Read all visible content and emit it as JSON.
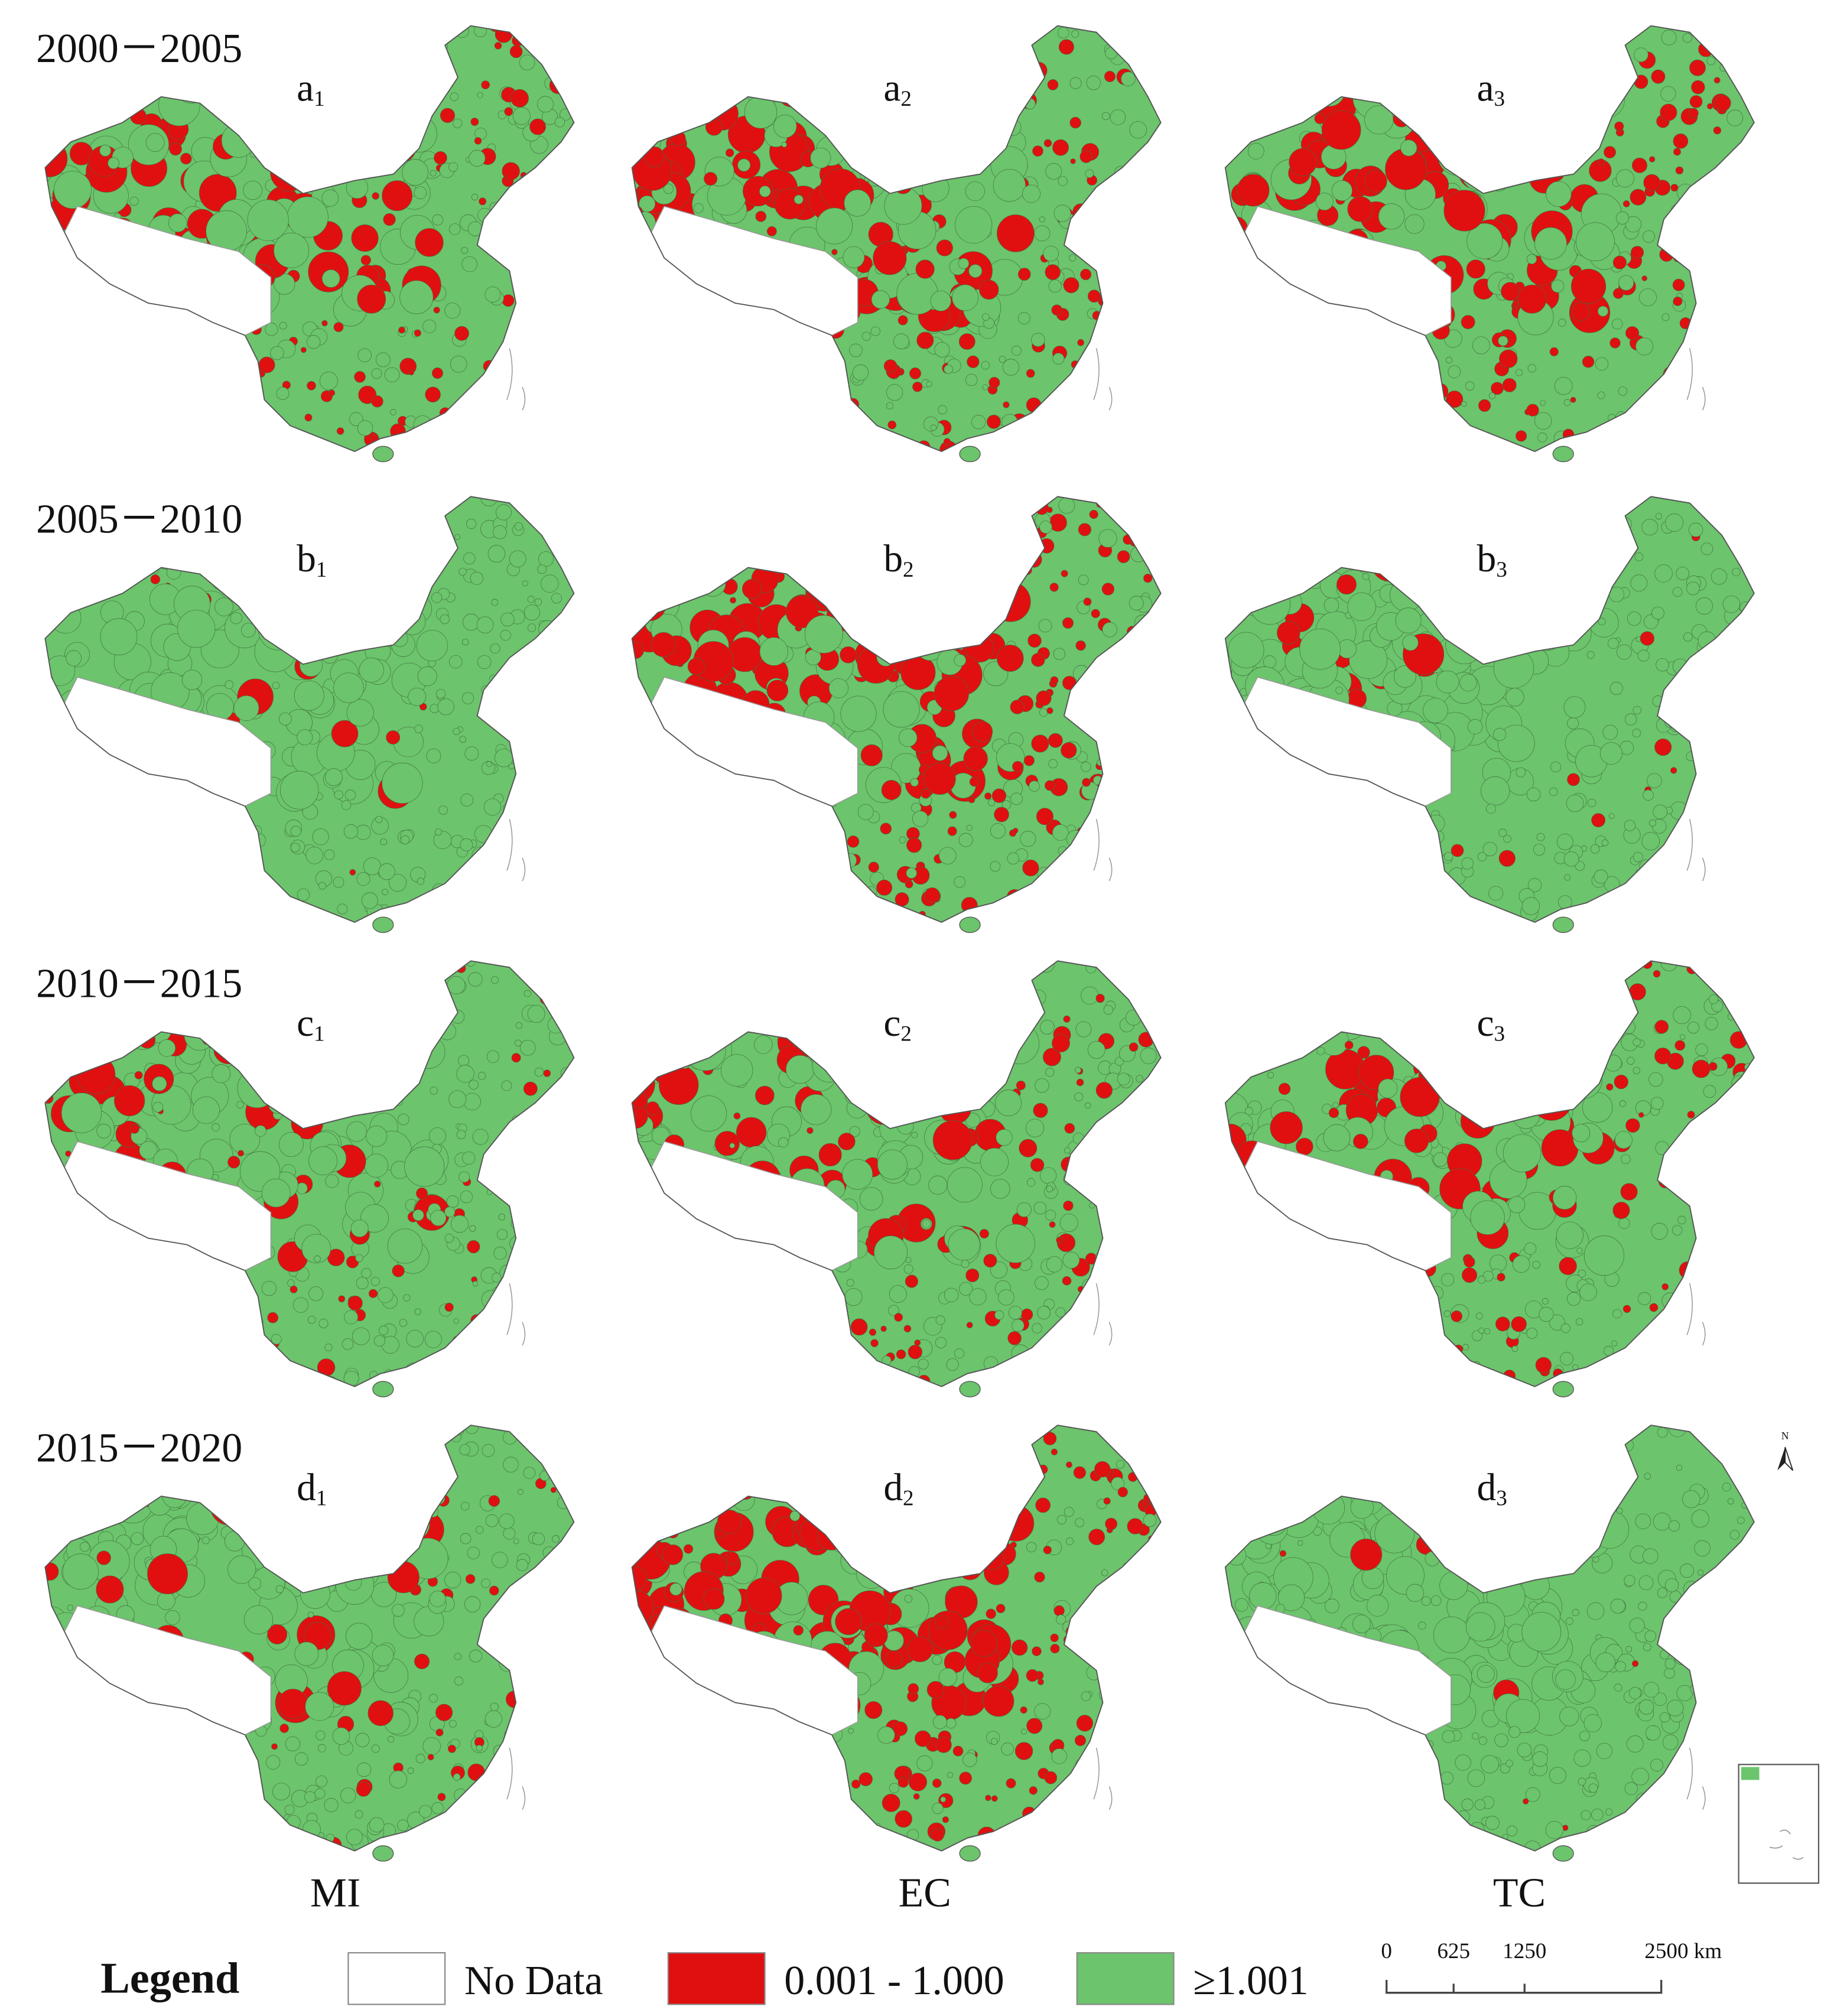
{
  "rows": [
    {
      "period": "2000－2005",
      "panels": [
        {
          "letter": "a",
          "sub": "1"
        },
        {
          "letter": "a",
          "sub": "2"
        },
        {
          "letter": "a",
          "sub": "3"
        }
      ]
    },
    {
      "period": "2005－2010",
      "panels": [
        {
          "letter": "b",
          "sub": "1"
        },
        {
          "letter": "b",
          "sub": "2"
        },
        {
          "letter": "b",
          "sub": "3"
        }
      ]
    },
    {
      "period": "2010－2015",
      "panels": [
        {
          "letter": "c",
          "sub": "1"
        },
        {
          "letter": "c",
          "sub": "2"
        },
        {
          "letter": "c",
          "sub": "3"
        }
      ]
    },
    {
      "period": "2015－2020",
      "panels": [
        {
          "letter": "d",
          "sub": "1"
        },
        {
          "letter": "d",
          "sub": "2"
        },
        {
          "letter": "d",
          "sub": "3"
        }
      ]
    }
  ],
  "columns": [
    "MI",
    "EC",
    "TC"
  ],
  "legend": {
    "title": "Legend",
    "items": [
      "No Data",
      "0.001 - 1.000",
      "≥1.001"
    ]
  },
  "scale_bar": {
    "labels": [
      "0",
      "625",
      "1250",
      "2500 km"
    ]
  },
  "north": "N"
}
